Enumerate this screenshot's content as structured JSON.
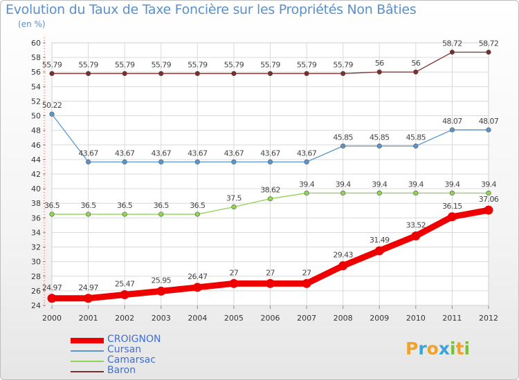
{
  "title": "Evolution du Taux de Taxe Foncière sur les Propriétés Non Bâties",
  "unit_label": "(en %)",
  "brand": {
    "letters": [
      "P",
      "r",
      "o",
      "x",
      "i",
      "t",
      "i"
    ],
    "colors": [
      "#f2a12b",
      "#3aa3d8",
      "#f2a12b",
      "#3aa3d8",
      "#7bbf3a",
      "#f2a12b",
      "#7bbf3a"
    ]
  },
  "chart_data": {
    "type": "line",
    "title": "Evolution du Taux de Taxe Foncière sur les Propriétés Non Bâties",
    "ylabel": "(en %)",
    "xlabel": "",
    "categories": [
      "2000",
      "2001",
      "2002",
      "2003",
      "2004",
      "2005",
      "2006",
      "2007",
      "2008",
      "2009",
      "2010",
      "2011",
      "2012"
    ],
    "ylim": [
      24,
      60
    ],
    "yticks": [
      24,
      26,
      28,
      30,
      32,
      34,
      36,
      38,
      40,
      42,
      44,
      46,
      48,
      50,
      52,
      54,
      56,
      58,
      60
    ],
    "grid": true,
    "legend_position": "bottom-left",
    "series": [
      {
        "name": "CROIGNON",
        "color": "#ee0000",
        "bold": true,
        "values": [
          24.97,
          24.97,
          25.47,
          25.95,
          26.47,
          27,
          27,
          27,
          29.43,
          31.49,
          33.52,
          36.15,
          37.06
        ],
        "labels": [
          "24.97",
          "24.97",
          "25.47",
          "25.95",
          "26.47",
          "27",
          "27",
          "27",
          "29.43",
          "31.49",
          "33.52",
          "36.15",
          "37.06"
        ]
      },
      {
        "name": "Cursan",
        "color": "#5b95cc",
        "bold": false,
        "values": [
          50.22,
          43.67,
          43.67,
          43.67,
          43.67,
          43.67,
          43.67,
          43.67,
          45.85,
          45.85,
          45.85,
          48.07,
          48.07
        ],
        "labels": [
          "50.22",
          "43.67",
          "43.67",
          "43.67",
          "43.67",
          "43.67",
          "43.67",
          "43.67",
          "45.85",
          "45.85",
          "45.85",
          "48.07",
          "48.07"
        ]
      },
      {
        "name": "Camarsac",
        "color": "#8fd455",
        "bold": false,
        "values": [
          36.5,
          36.5,
          36.5,
          36.5,
          36.5,
          37.5,
          38.62,
          39.4,
          39.4,
          39.4,
          39.4,
          39.4,
          39.4
        ],
        "labels": [
          "36.5",
          "36.5",
          "36.5",
          "36.5",
          "36.5",
          "37.5",
          "38.62",
          "39.4",
          "39.4",
          "39.4",
          "39.4",
          "39.4",
          "39.4"
        ]
      },
      {
        "name": "Baron",
        "color": "#7a2e2e",
        "bold": false,
        "values": [
          55.79,
          55.79,
          55.79,
          55.79,
          55.79,
          55.79,
          55.79,
          55.79,
          55.79,
          56,
          56,
          58.72,
          58.72
        ],
        "labels": [
          "55.79",
          "55.79",
          "55.79",
          "55.79",
          "55.79",
          "55.79",
          "55.79",
          "55.79",
          "55.79",
          "56",
          "56",
          "58.72",
          "58.72"
        ]
      }
    ]
  }
}
